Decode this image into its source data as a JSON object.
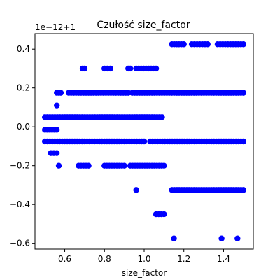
{
  "chart_data": {
    "type": "scatter",
    "title": "Czułość size_factor",
    "xlabel": "size_factor",
    "ylabel": "",
    "offset_text": "1e−12+1",
    "xlim": [
      0.45,
      1.55
    ],
    "ylim": [
      -0.63,
      0.48
    ],
    "xticks": [
      0.6,
      0.8,
      1.0,
      1.2,
      1.4
    ],
    "xtick_labels": [
      "0.6",
      "0.8",
      "1.0",
      "1.2",
      "1.4"
    ],
    "yticks": [
      -0.6,
      -0.4,
      -0.2,
      0.0,
      0.2,
      0.4
    ],
    "ytick_labels": [
      "−0.6",
      "−0.4",
      "−0.2",
      "0.0",
      "0.2",
      "0.4"
    ],
    "marker_color": "#0000ff",
    "levels": [
      {
        "y": 0.425,
        "ranges": [
          [
            1.14,
            1.2
          ],
          [
            1.24,
            1.32
          ],
          [
            1.37,
            1.5
          ]
        ]
      },
      {
        "y": 0.3,
        "ranges": [
          [
            0.69,
            0.7
          ],
          [
            0.8,
            0.83
          ],
          [
            0.92,
            0.93
          ],
          [
            0.96,
            1.06
          ]
        ]
      },
      {
        "y": 0.175,
        "ranges": [
          [
            0.56,
            0.58
          ],
          [
            0.62,
            0.92
          ],
          [
            0.94,
            1.5
          ]
        ]
      },
      {
        "y": 0.11,
        "ranges": [
          [
            0.56,
            0.56
          ]
        ]
      },
      {
        "y": 0.05,
        "ranges": [
          [
            0.5,
            1.09
          ]
        ]
      },
      {
        "y": -0.015,
        "ranges": [
          [
            0.5,
            0.56
          ]
        ]
      },
      {
        "y": -0.075,
        "ranges": [
          [
            0.5,
            1.0
          ],
          [
            1.03,
            1.5
          ]
        ]
      },
      {
        "y": -0.135,
        "ranges": [
          [
            0.53,
            0.56
          ]
        ]
      },
      {
        "y": -0.2,
        "ranges": [
          [
            0.57,
            0.57
          ],
          [
            0.67,
            0.72
          ],
          [
            0.8,
            0.9
          ],
          [
            0.93,
            1.1
          ]
        ]
      },
      {
        "y": -0.325,
        "ranges": [
          [
            0.96,
            0.96
          ],
          [
            1.14,
            1.5
          ]
        ]
      },
      {
        "y": -0.45,
        "ranges": [
          [
            1.06,
            1.1
          ]
        ]
      },
      {
        "y": -0.575,
        "ranges": [
          [
            1.15,
            1.15
          ],
          [
            1.39,
            1.39
          ],
          [
            1.47,
            1.47
          ]
        ]
      }
    ]
  }
}
